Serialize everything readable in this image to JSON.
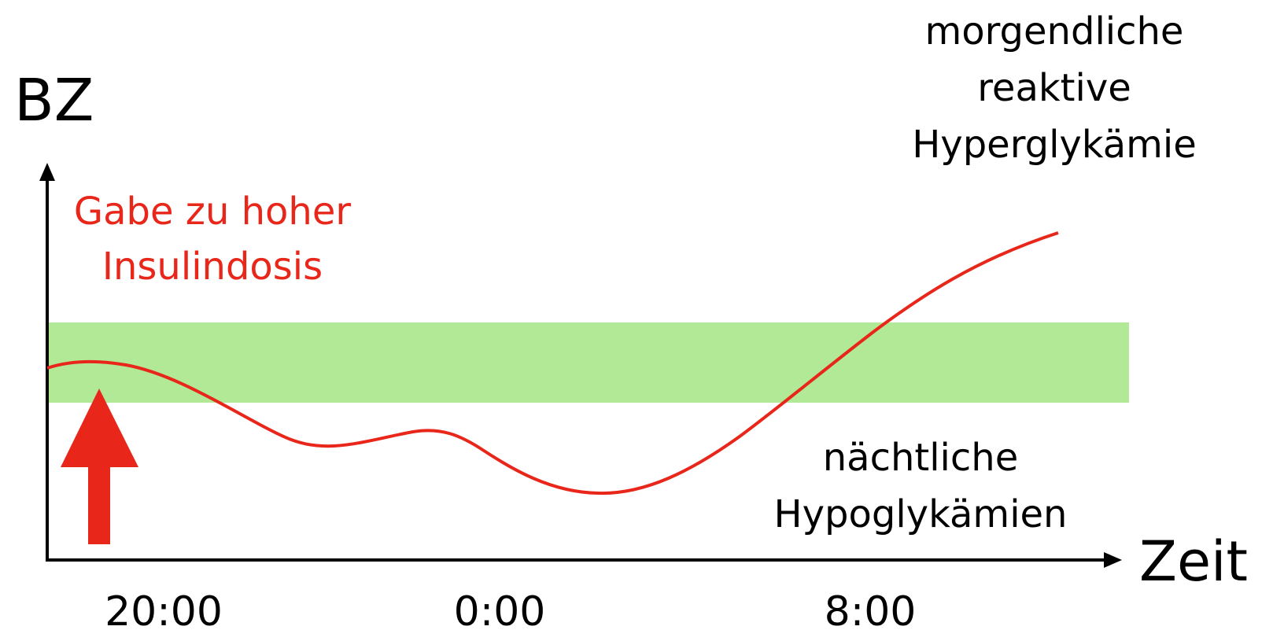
{
  "chart_data": {
    "type": "line",
    "ylabel": "BZ",
    "xlabel": "Zeit",
    "x_tick_labels": [
      "20:00",
      "0:00",
      "8:00"
    ],
    "target_band_color": "#b1e997",
    "curve_color": "#e8261a",
    "axis_color": "#000000",
    "annotations": {
      "insulin_line1": "Gabe zu hoher",
      "insulin_line2": "Insulindosis",
      "hypo_line1": "nächtliche",
      "hypo_line2": "Hypoglykämien",
      "hyper_line1": "morgendliche",
      "hyper_line2": "reaktive",
      "hyper_line3": "Hyperglykämie"
    },
    "grid": false,
    "legend": "none"
  }
}
